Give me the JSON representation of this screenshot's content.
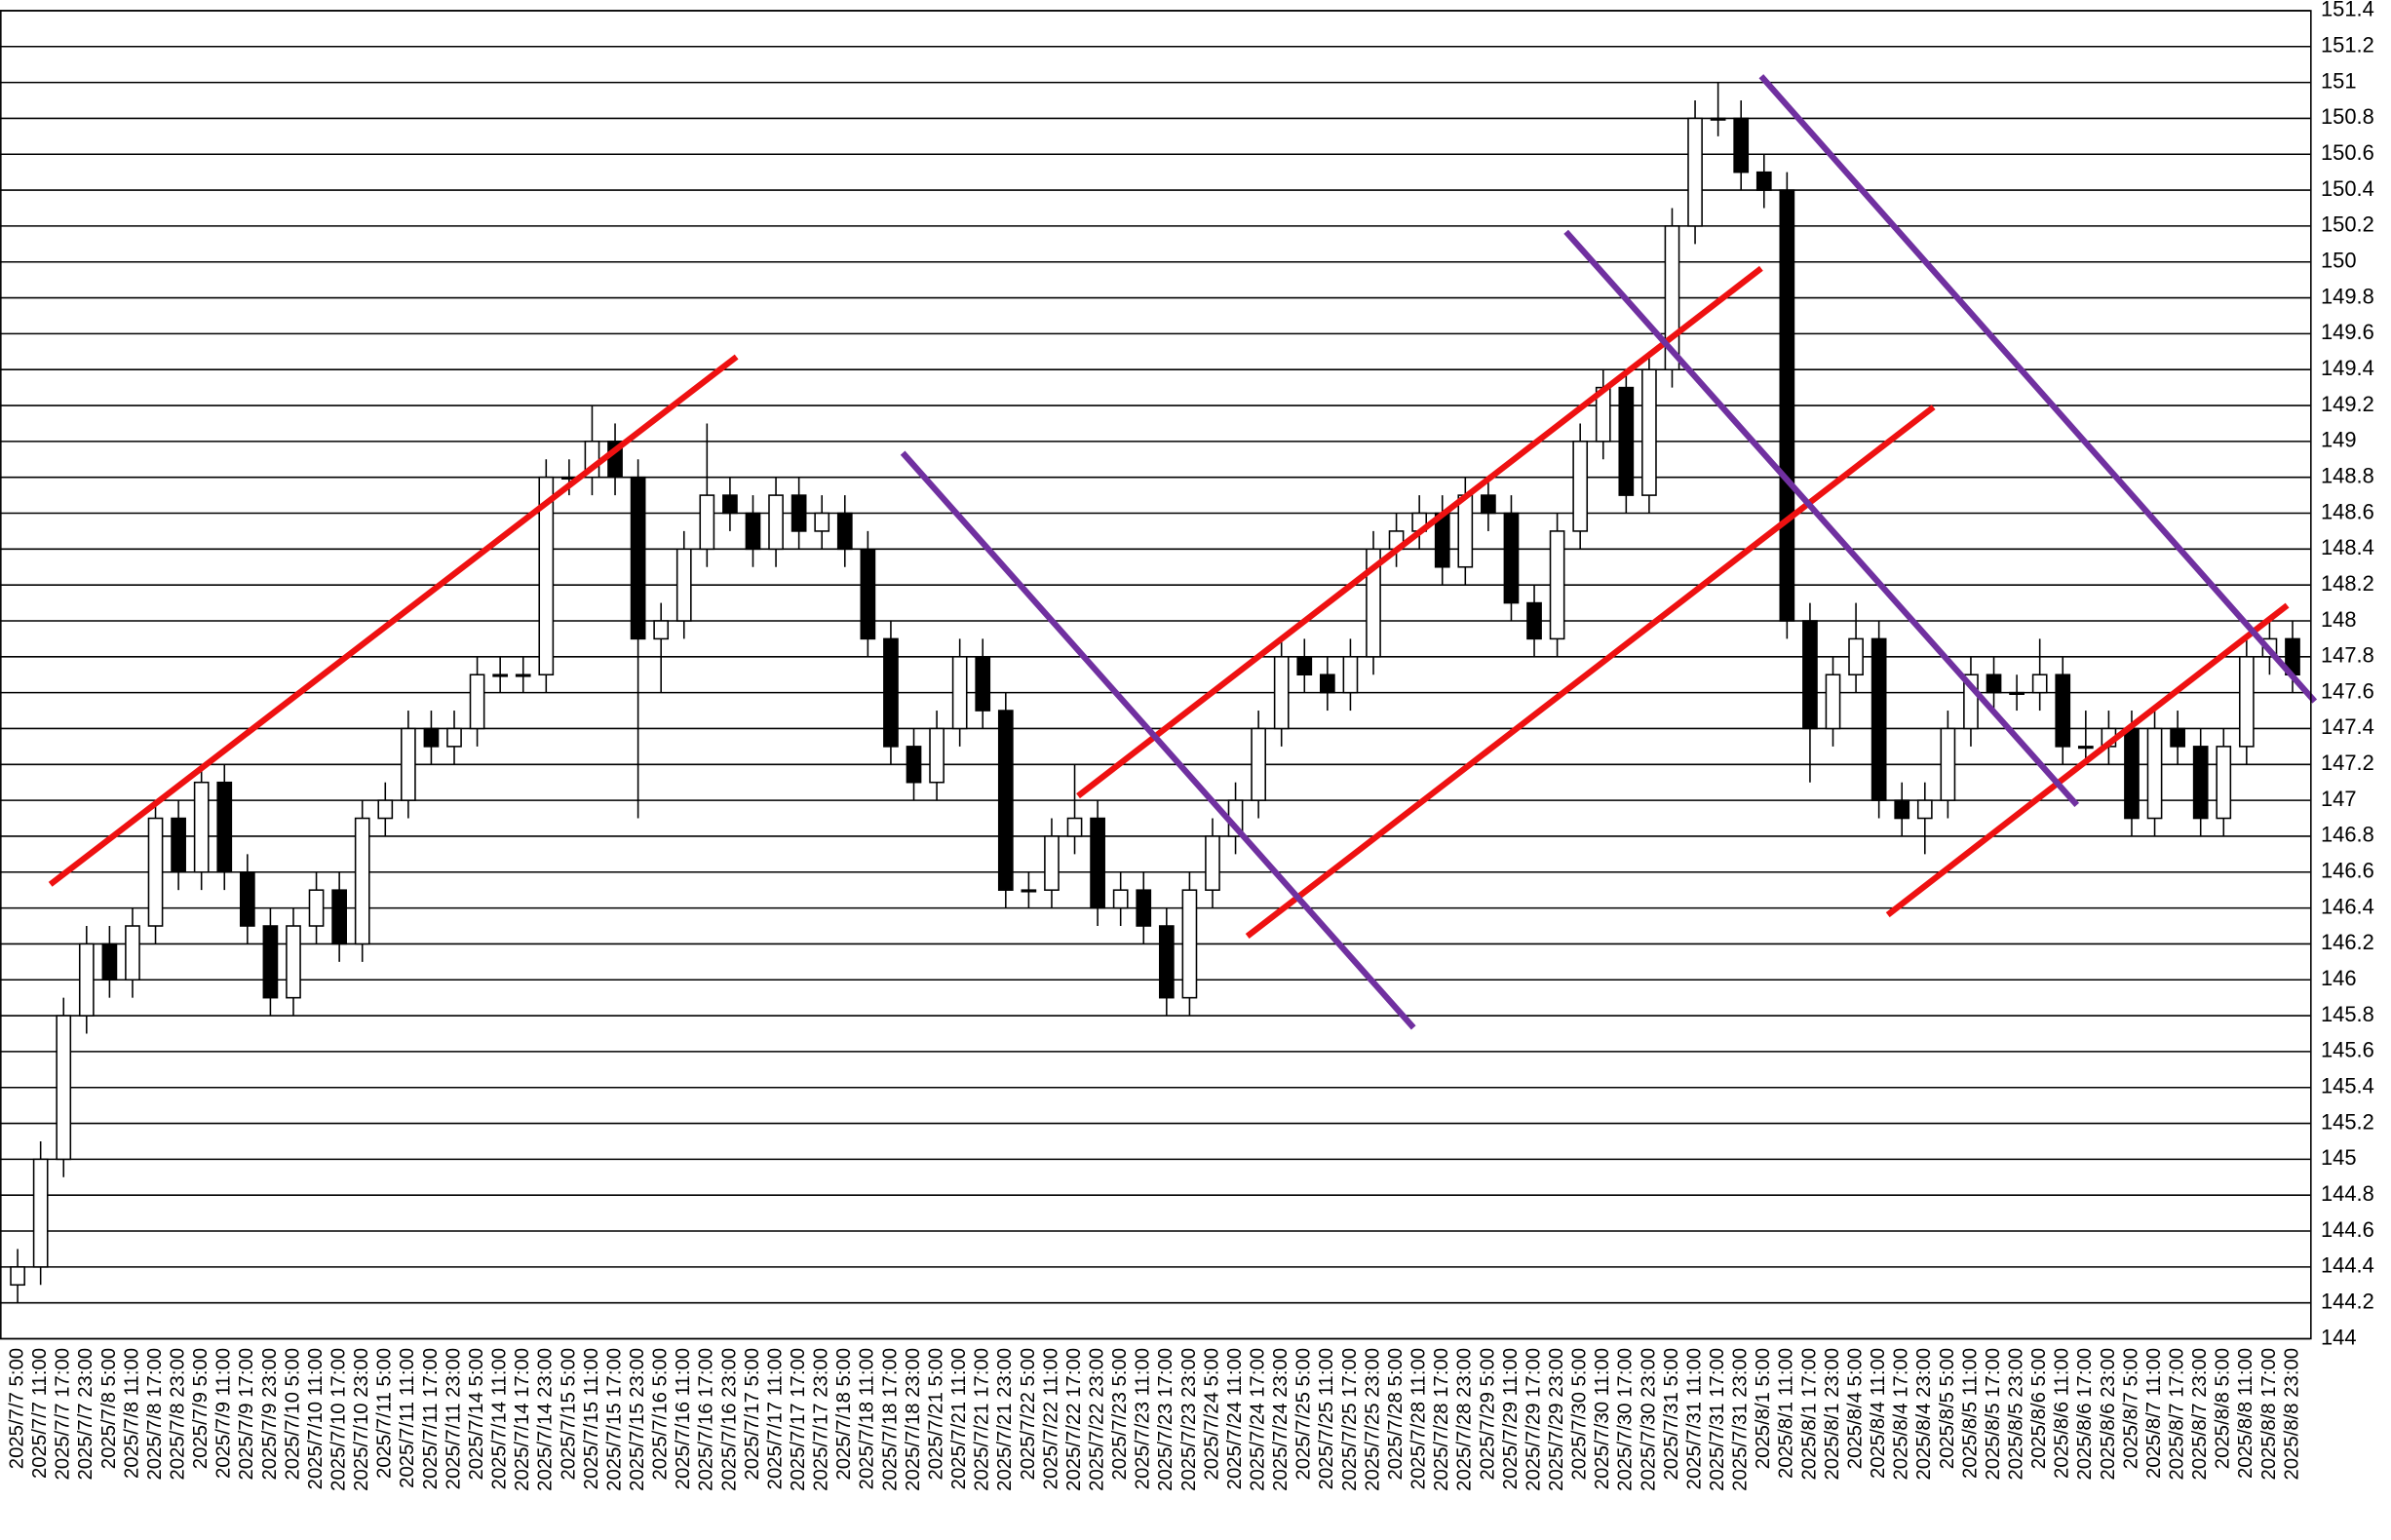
{
  "chart_data": {
    "type": "candlestick",
    "categories": [
      "2025/7/7 5:00",
      "2025/7/7 11:00",
      "2025/7/7 17:00",
      "2025/7/7 23:00",
      "2025/7/8 5:00",
      "2025/7/8 11:00",
      "2025/7/8 17:00",
      "2025/7/8 23:00",
      "2025/7/9 5:00",
      "2025/7/9 11:00",
      "2025/7/9 17:00",
      "2025/7/9 23:00",
      "2025/7/10 5:00",
      "2025/7/10 11:00",
      "2025/7/10 17:00",
      "2025/7/10 23:00",
      "2025/7/11 5:00",
      "2025/7/11 11:00",
      "2025/7/11 17:00",
      "2025/7/11 23:00",
      "2025/7/14 5:00",
      "2025/7/14 11:00",
      "2025/7/14 17:00",
      "2025/7/14 23:00",
      "2025/7/15 5:00",
      "2025/7/15 11:00",
      "2025/7/15 17:00",
      "2025/7/15 23:00",
      "2025/7/16 5:00",
      "2025/7/16 11:00",
      "2025/7/16 17:00",
      "2025/7/16 23:00",
      "2025/7/17 5:00",
      "2025/7/17 11:00",
      "2025/7/17 17:00",
      "2025/7/17 23:00",
      "2025/7/18 5:00",
      "2025/7/18 11:00",
      "2025/7/18 17:00",
      "2025/7/18 23:00",
      "2025/7/21 5:00",
      "2025/7/21 11:00",
      "2025/7/21 17:00",
      "2025/7/21 23:00",
      "2025/7/22 5:00",
      "2025/7/22 11:00",
      "2025/7/22 17:00",
      "2025/7/22 23:00",
      "2025/7/23 5:00",
      "2025/7/23 11:00",
      "2025/7/23 17:00",
      "2025/7/23 23:00",
      "2025/7/24 5:00",
      "2025/7/24 11:00",
      "2025/7/24 17:00",
      "2025/7/24 23:00",
      "2025/7/25 5:00",
      "2025/7/25 11:00",
      "2025/7/25 17:00",
      "2025/7/25 23:00",
      "2025/7/28 5:00",
      "2025/7/28 11:00",
      "2025/7/28 17:00",
      "2025/7/28 23:00",
      "2025/7/29 5:00",
      "2025/7/29 11:00",
      "2025/7/29 17:00",
      "2025/7/29 23:00",
      "2025/7/30 5:00",
      "2025/7/30 11:00",
      "2025/7/30 17:00",
      "2025/7/30 23:00",
      "2025/7/31 5:00",
      "2025/7/31 11:00",
      "2025/7/31 17:00",
      "2025/7/31 23:00",
      "2025/8/1 5:00",
      "2025/8/1 11:00",
      "2025/8/1 17:00",
      "2025/8/1 23:00",
      "2025/8/4 5:00",
      "2025/8/4 11:00",
      "2025/8/4 17:00",
      "2025/8/4 23:00",
      "2025/8/5 5:00",
      "2025/8/5 11:00",
      "2025/8/5 17:00",
      "2025/8/5 23:00",
      "2025/8/6 5:00",
      "2025/8/6 11:00",
      "2025/8/6 17:00",
      "2025/8/6 23:00",
      "2025/8/7 5:00",
      "2025/8/7 11:00",
      "2025/8/7 17:00",
      "2025/8/7 23:00",
      "2025/8/8 5:00",
      "2025/8/8 11:00",
      "2025/8/8 17:00",
      "2025/8/8 23:00"
    ],
    "open": [
      144.3,
      144.4,
      145.0,
      145.8,
      146.2,
      146.0,
      146.3,
      146.9,
      146.6,
      147.1,
      146.6,
      146.3,
      145.9,
      146.3,
      146.5,
      146.2,
      146.9,
      147.0,
      147.4,
      147.3,
      147.4,
      147.7,
      147.7,
      147.7,
      148.8,
      148.8,
      149.0,
      148.8,
      147.9,
      148.0,
      148.4,
      148.7,
      148.6,
      148.4,
      148.7,
      148.5,
      148.6,
      148.4,
      147.9,
      147.3,
      147.1,
      147.4,
      147.8,
      147.5,
      146.5,
      146.5,
      146.8,
      146.9,
      146.4,
      146.5,
      146.3,
      145.9,
      146.5,
      146.8,
      147.0,
      147.4,
      147.8,
      147.7,
      147.6,
      147.8,
      148.4,
      148.5,
      148.6,
      148.3,
      148.7,
      148.6,
      148.1,
      147.9,
      148.5,
      149.0,
      149.3,
      148.7,
      149.4,
      150.2,
      150.8,
      150.8,
      150.5,
      150.4,
      148.0,
      147.4,
      147.7,
      147.9,
      147.0,
      146.9,
      147.0,
      147.4,
      147.7,
      147.6,
      147.6,
      147.7,
      147.3,
      147.3,
      147.4,
      146.9,
      147.4,
      147.3,
      146.9,
      147.3,
      147.8,
      147.9
    ],
    "high": [
      144.5,
      145.1,
      145.9,
      146.3,
      146.3,
      146.4,
      147.0,
      147.0,
      147.2,
      147.2,
      146.7,
      146.4,
      146.4,
      146.6,
      146.6,
      147.0,
      147.1,
      147.5,
      147.5,
      147.5,
      147.8,
      147.8,
      147.8,
      148.9,
      148.9,
      149.2,
      149.1,
      148.9,
      148.1,
      148.5,
      149.1,
      148.8,
      148.7,
      148.8,
      148.8,
      148.7,
      148.7,
      148.5,
      148.0,
      147.4,
      147.5,
      147.9,
      147.9,
      147.6,
      146.6,
      146.9,
      147.2,
      147.0,
      146.6,
      146.6,
      146.4,
      146.6,
      146.9,
      147.1,
      147.5,
      147.9,
      147.9,
      147.8,
      147.9,
      148.5,
      148.6,
      148.7,
      148.7,
      148.8,
      148.8,
      148.7,
      148.2,
      148.6,
      149.1,
      149.4,
      149.4,
      149.5,
      150.3,
      150.9,
      151.0,
      150.9,
      150.6,
      150.5,
      148.1,
      147.8,
      148.1,
      148.0,
      147.1,
      147.1,
      147.5,
      147.8,
      147.8,
      147.7,
      147.9,
      147.8,
      147.5,
      147.5,
      147.5,
      147.5,
      147.5,
      147.4,
      147.4,
      147.9,
      148.0,
      148.0
    ],
    "low": [
      144.2,
      144.3,
      144.9,
      145.7,
      145.9,
      145.9,
      146.2,
      146.5,
      146.5,
      146.5,
      146.2,
      145.8,
      145.8,
      146.2,
      146.1,
      146.1,
      146.8,
      146.9,
      147.2,
      147.2,
      147.3,
      147.6,
      147.6,
      147.6,
      148.7,
      148.7,
      148.7,
      146.9,
      147.6,
      147.9,
      148.3,
      148.5,
      148.3,
      148.3,
      148.4,
      148.4,
      148.3,
      147.8,
      147.2,
      147.0,
      147.0,
      147.3,
      147.4,
      146.4,
      146.4,
      146.4,
      146.7,
      146.3,
      146.3,
      146.2,
      145.8,
      145.8,
      146.4,
      146.7,
      146.9,
      147.3,
      147.6,
      147.5,
      147.5,
      147.7,
      148.3,
      148.4,
      148.2,
      148.2,
      148.5,
      148.0,
      147.8,
      147.8,
      148.4,
      148.9,
      148.6,
      148.6,
      149.3,
      150.1,
      150.7,
      150.4,
      150.3,
      147.9,
      147.1,
      147.3,
      147.6,
      146.9,
      146.8,
      146.7,
      146.9,
      147.3,
      147.5,
      147.5,
      147.5,
      147.2,
      147.2,
      147.2,
      146.8,
      146.8,
      147.2,
      146.8,
      146.8,
      147.2,
      147.7,
      147.6
    ],
    "close": [
      144.4,
      145.0,
      145.8,
      146.2,
      146.0,
      146.3,
      146.9,
      146.6,
      147.1,
      146.6,
      146.3,
      145.9,
      146.3,
      146.5,
      146.2,
      146.9,
      147.0,
      147.4,
      147.3,
      147.4,
      147.7,
      147.7,
      147.7,
      148.8,
      148.8,
      149.0,
      148.8,
      147.9,
      148.0,
      148.4,
      148.7,
      148.6,
      148.4,
      148.7,
      148.5,
      148.6,
      148.4,
      147.9,
      147.3,
      147.1,
      147.4,
      147.8,
      147.5,
      146.5,
      146.5,
      146.8,
      146.9,
      146.4,
      146.5,
      146.3,
      145.9,
      146.5,
      146.8,
      147.0,
      147.4,
      147.8,
      147.7,
      147.6,
      147.8,
      148.4,
      148.5,
      148.6,
      148.3,
      148.7,
      148.6,
      148.1,
      147.9,
      148.5,
      149.0,
      149.3,
      148.7,
      149.4,
      150.2,
      150.8,
      150.8,
      150.5,
      150.4,
      148.0,
      147.4,
      147.7,
      147.9,
      147.0,
      146.9,
      147.0,
      147.4,
      147.7,
      147.6,
      147.6,
      147.7,
      147.3,
      147.3,
      147.4,
      146.9,
      147.4,
      147.3,
      146.9,
      147.3,
      147.8,
      147.9,
      147.7
    ],
    "ylim": [
      144,
      151.4
    ],
    "yticks": [
      144,
      144.2,
      144.4,
      144.6,
      144.8,
      145,
      145.2,
      145.4,
      145.6,
      145.8,
      146,
      146.2,
      146.4,
      146.6,
      146.8,
      147,
      147.2,
      147.4,
      147.6,
      147.8,
      148,
      148.2,
      148.4,
      148.6,
      148.8,
      149,
      149.2,
      149.4,
      149.6,
      149.8,
      150,
      150.2,
      150.4,
      150.6,
      150.8,
      151,
      151.2,
      151.4
    ],
    "grid": true,
    "color": "#000000"
  }
}
